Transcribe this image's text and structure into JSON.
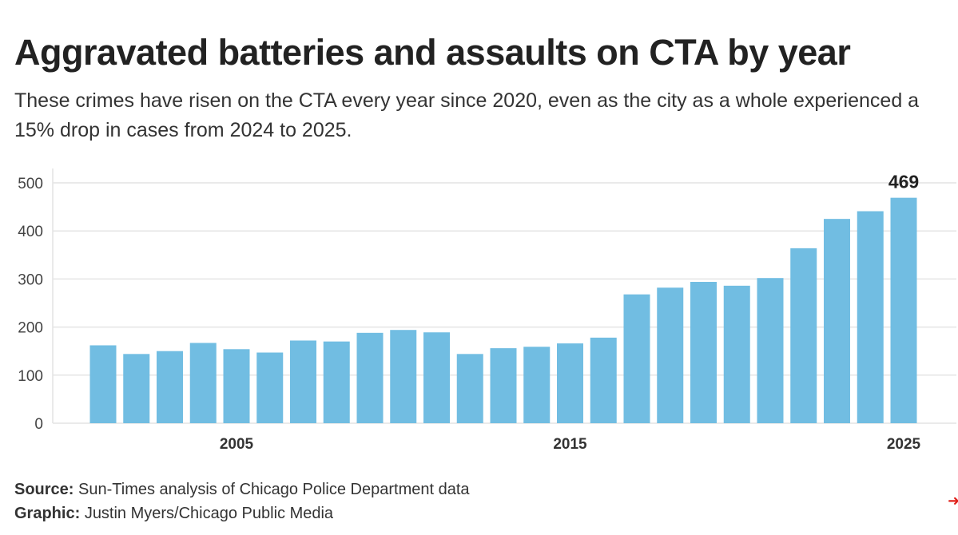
{
  "title": "Aggravated batteries and assaults on CTA by year",
  "subtitle": "These crimes have risen on the CTA every year since 2020, even as the city as a whole experienced a 15% drop in cases from 2024 to 2025.",
  "source": {
    "label": "Source:",
    "text": "Sun-Times analysis of Chicago Police Department data"
  },
  "graphic": {
    "label": "Graphic:",
    "text": "Justin Myers/Chicago Public Media"
  },
  "corner_mark": "➜",
  "colors": {
    "bar": "#71bde2",
    "grid": "#e4e4e4",
    "axis_text": "#444444"
  },
  "chart_data": {
    "type": "bar",
    "title": "Aggravated batteries and assaults on CTA by year",
    "xlabel": "",
    "ylabel": "",
    "ylim": [
      0,
      500
    ],
    "yticks": [
      0,
      100,
      200,
      300,
      400,
      500
    ],
    "xtick_labels": [
      "2005",
      "2015",
      "2025"
    ],
    "grid": true,
    "categories": [
      2001,
      2002,
      2003,
      2004,
      2005,
      2006,
      2007,
      2008,
      2009,
      2010,
      2011,
      2012,
      2013,
      2014,
      2015,
      2016,
      2017,
      2018,
      2019,
      2020,
      2021,
      2022,
      2023,
      2024,
      2025
    ],
    "values": [
      162,
      144,
      150,
      167,
      154,
      147,
      172,
      170,
      188,
      194,
      189,
      144,
      156,
      159,
      166,
      178,
      268,
      282,
      294,
      286,
      302,
      364,
      425,
      441,
      469
    ],
    "annotations": [
      {
        "category": 2025,
        "text": "469"
      }
    ]
  }
}
